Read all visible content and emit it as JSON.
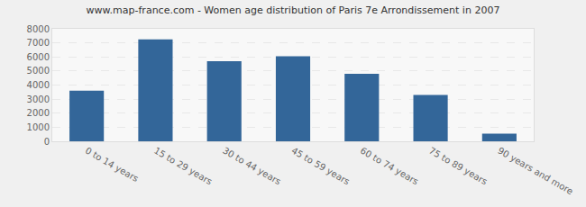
{
  "chart_data": {
    "type": "bar",
    "title": "www.map-france.com - Women age distribution of Paris 7e Arrondissement in 2007",
    "categories": [
      "0 to 14 years",
      "15 to 29 years",
      "30 to 44 years",
      "45 to 59 years",
      "60 to 74 years",
      "75 to 89 years",
      "90 years and more"
    ],
    "values": [
      3600,
      7250,
      5700,
      6050,
      4800,
      3300,
      550
    ],
    "color": "#336699",
    "ylim": [
      0,
      8000
    ],
    "yticks": [
      0,
      1000,
      2000,
      3000,
      4000,
      5000,
      6000,
      7000,
      8000
    ],
    "grid": true
  }
}
